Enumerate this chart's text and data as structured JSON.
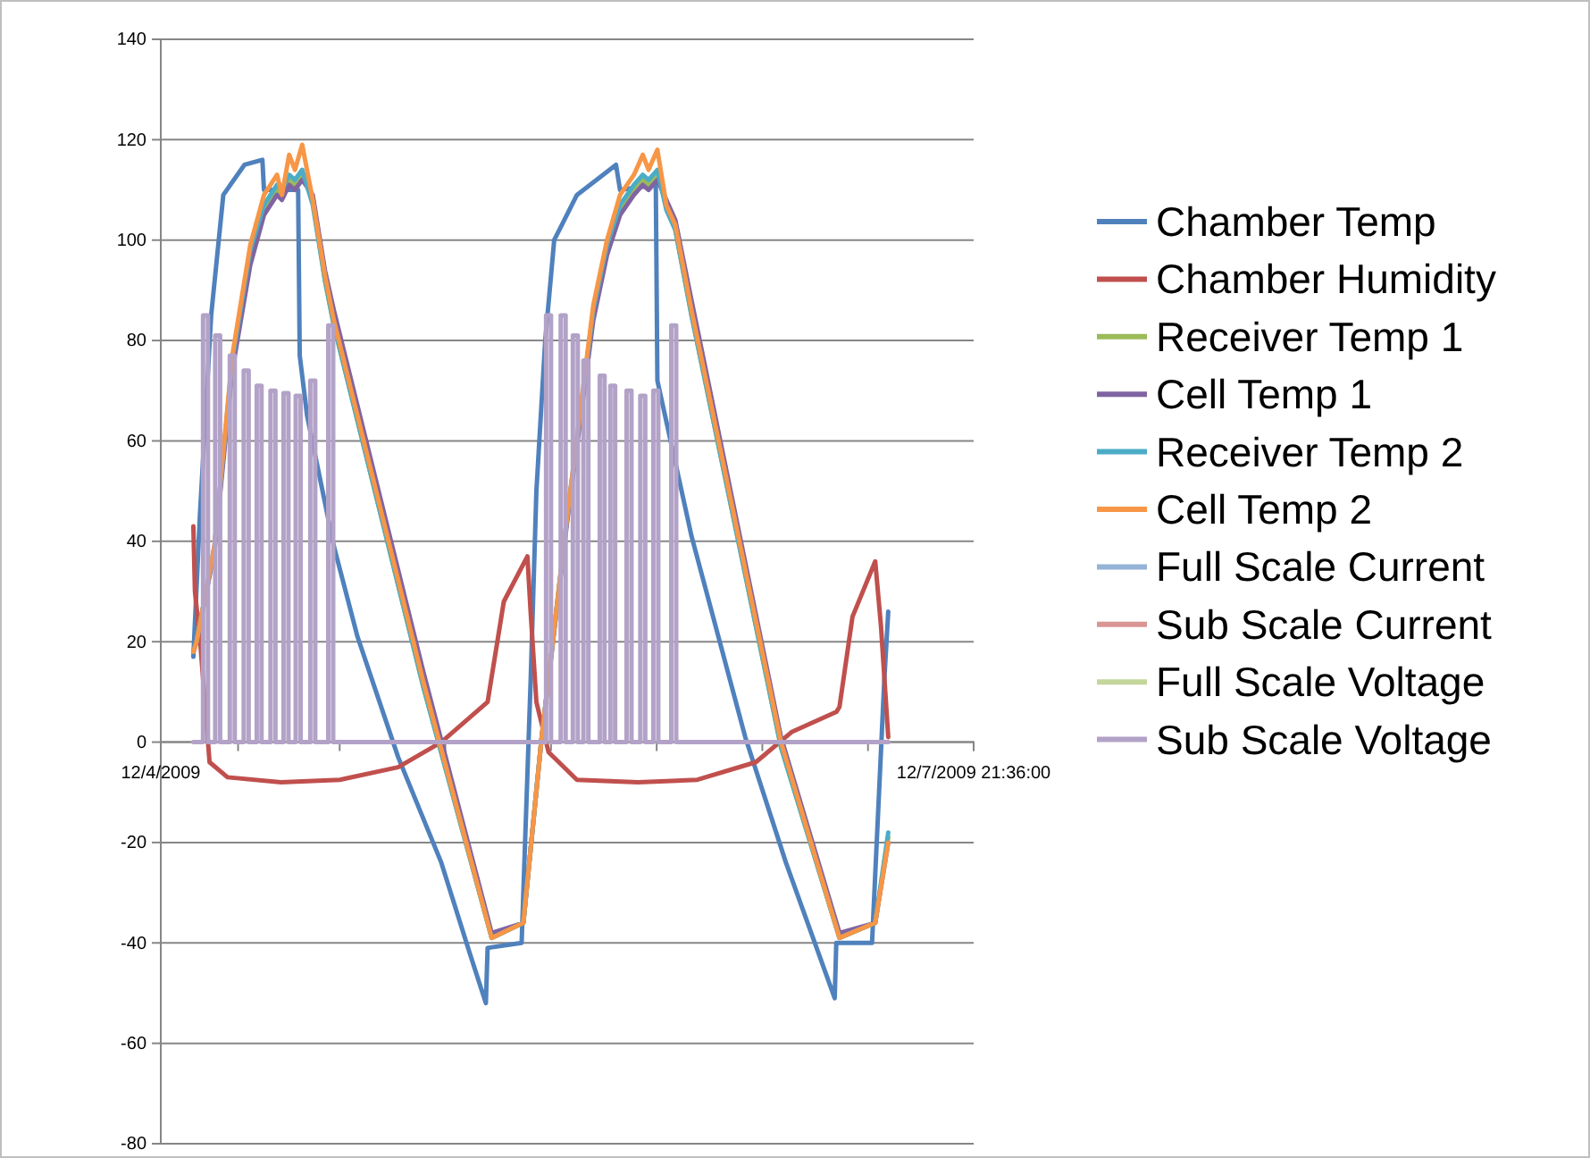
{
  "chart_data": {
    "type": "line",
    "xlim": [
      "2009-12-04T00:00",
      "2009-12-07T21:36"
    ],
    "xticks": [
      {
        "value": "2009-12-04T00:00",
        "label": "12/4/2009"
      },
      {
        "value": "2009-12-04T08:54",
        "label": null
      },
      {
        "value": "2009-12-04T20:36",
        "label": null
      },
      {
        "value": "2009-12-05T08:46",
        "label": null
      },
      {
        "value": "2009-12-05T20:56",
        "label": null
      },
      {
        "value": "2009-12-06T09:06",
        "label": null
      },
      {
        "value": "2009-12-06T21:16",
        "label": null
      },
      {
        "value": "2009-12-07T09:26",
        "label": null
      },
      {
        "value": "2009-12-07T21:36",
        "label": "12/7/2009 21:36:00"
      }
    ],
    "ylim": [
      -80,
      140
    ],
    "yticks": [
      -80,
      -60,
      -40,
      -20,
      0,
      20,
      40,
      60,
      80,
      100,
      120,
      140
    ],
    "grid": "y",
    "legend": "right",
    "line_style": "solid",
    "series": [
      {
        "name": "Chamber Temp",
        "color": "#4f81bd",
        "x": [
          "2009-12-04T03:45",
          "2009-12-04T04:30",
          "2009-12-04T05:48",
          "2009-12-04T07:12",
          "2009-12-04T09:38",
          "2009-12-04T11:42",
          "2009-12-04T11:53",
          "2009-12-04T15:49",
          "2009-12-04T16:00",
          "2009-12-04T16:51",
          "2009-12-04T19:56",
          "2009-12-04T22:39",
          "2009-12-05T03:20",
          "2009-12-05T08:18",
          "2009-12-05T11:34",
          "2009-12-05T13:26",
          "2009-12-05T13:38",
          "2009-12-05T17:33",
          "2009-12-05T18:35",
          "2009-12-05T19:15",
          "2009-12-05T20:16",
          "2009-12-05T21:18",
          "2009-12-05T23:55",
          "2009-12-06T04:25",
          "2009-12-06T04:53",
          "2009-12-06T09:00",
          "2009-12-06T09:11",
          "2009-12-06T13:07",
          "2009-12-06T19:18",
          "2009-12-06T23:59",
          "2009-12-07T05:36",
          "2009-12-07T05:47",
          "2009-12-07T09:54",
          "2009-12-07T11:18",
          "2009-12-07T11:46"
        ],
        "values": [
          17,
          45,
          85,
          109,
          115,
          116,
          110,
          110,
          77,
          65,
          39,
          21,
          -3,
          -24,
          -42,
          -52,
          -41,
          -40,
          12,
          50,
          80,
          100,
          109,
          115,
          110,
          111,
          72,
          41,
          1,
          -24,
          -51,
          -40,
          -40,
          12,
          26
        ]
      },
      {
        "name": "Chamber Humidity",
        "color": "#c0504d",
        "x": [
          "2009-12-04T03:45",
          "2009-12-04T03:56",
          "2009-12-04T04:35",
          "2009-12-04T05:37",
          "2009-12-04T07:41",
          "2009-12-04T13:51",
          "2009-12-04T20:36",
          "2009-12-05T03:20",
          "2009-12-05T08:18",
          "2009-12-05T13:38",
          "2009-12-05T15:30",
          "2009-12-05T18:13",
          "2009-12-05T18:35",
          "2009-12-05T19:15",
          "2009-12-05T20:39",
          "2009-12-05T23:55",
          "2009-12-06T06:57",
          "2009-12-06T13:47",
          "2009-12-06T20:31",
          "2009-12-07T00:38",
          "2009-12-07T05:47",
          "2009-12-07T06:09",
          "2009-12-07T07:39",
          "2009-12-07T10:16",
          "2009-12-07T10:56",
          "2009-12-07T11:46"
        ],
        "values": [
          43,
          30,
          19,
          -4,
          -7,
          -8,
          -7.5,
          -5,
          0,
          8,
          28,
          37,
          26,
          8,
          -2,
          -7.5,
          -8,
          -7.5,
          -4,
          2,
          6,
          7,
          25,
          36,
          23,
          1
        ]
      },
      {
        "name": "Receiver Temp 1",
        "color": "#9bbb59",
        "x": [
          "2009-12-04T03:45",
          "2009-12-04T04:07",
          "2009-12-04T06:11",
          "2009-12-04T08:14",
          "2009-12-04T10:18",
          "2009-12-04T11:53",
          "2009-12-04T13:23",
          "2009-12-04T13:57",
          "2009-12-04T14:47",
          "2009-12-04T15:27",
          "2009-12-04T16:17",
          "2009-12-04T17:30",
          "2009-12-04T18:54",
          "2009-12-04T19:56",
          "2009-12-05T06:14",
          "2009-12-05T14:06",
          "2009-12-05T17:45",
          "2009-12-05T19:48",
          "2009-12-05T22:48",
          "2009-12-06T01:48",
          "2009-12-06T03:23",
          "2009-12-06T04:53",
          "2009-12-06T06:29",
          "2009-12-06T07:30",
          "2009-12-06T08:10",
          "2009-12-06T09:11",
          "2009-12-06T10:13",
          "2009-12-06T11:15",
          "2009-12-06T13:07",
          "2009-12-06T23:25",
          "2009-12-07T06:09",
          "2009-12-07T10:16",
          "2009-12-07T11:46"
        ],
        "values": [
          18,
          20,
          39,
          75,
          97,
          106,
          110,
          109,
          112,
          111,
          113,
          108,
          92,
          83,
          11,
          -39,
          -36,
          0,
          45,
          85,
          98,
          106,
          110,
          112,
          111,
          113,
          107,
          102,
          85,
          -1,
          -39,
          -36,
          -19
        ]
      },
      {
        "name": "Cell Temp 1",
        "color": "#8064a2",
        "x": [
          "2009-12-04T03:45",
          "2009-12-04T04:07",
          "2009-12-04T06:11",
          "2009-12-04T08:14",
          "2009-12-04T10:18",
          "2009-12-04T11:53",
          "2009-12-04T13:23",
          "2009-12-04T13:57",
          "2009-12-04T14:47",
          "2009-12-04T15:27",
          "2009-12-04T16:17",
          "2009-12-04T17:30",
          "2009-12-04T18:54",
          "2009-12-04T19:56",
          "2009-12-05T06:14",
          "2009-12-05T14:06",
          "2009-12-05T17:45",
          "2009-12-05T19:48",
          "2009-12-05T22:48",
          "2009-12-06T01:48",
          "2009-12-06T03:23",
          "2009-12-06T04:53",
          "2009-12-06T06:29",
          "2009-12-06T07:30",
          "2009-12-06T08:10",
          "2009-12-06T09:11",
          "2009-12-06T10:13",
          "2009-12-06T11:15",
          "2009-12-06T13:07",
          "2009-12-06T23:25",
          "2009-12-07T06:09",
          "2009-12-07T10:16",
          "2009-12-07T11:46"
        ],
        "values": [
          18,
          20,
          38,
          74,
          95,
          105,
          109,
          108,
          111,
          110,
          112,
          109,
          94,
          86,
          14,
          -38,
          -36,
          0,
          44,
          84,
          97,
          105,
          109,
          111,
          110,
          112,
          108,
          104,
          88,
          1,
          -38,
          -36,
          -20
        ]
      },
      {
        "name": "Receiver Temp 2",
        "color": "#4bacc6",
        "x": [
          "2009-12-04T03:45",
          "2009-12-04T04:07",
          "2009-12-04T06:11",
          "2009-12-04T08:14",
          "2009-12-04T10:18",
          "2009-12-04T11:53",
          "2009-12-04T13:23",
          "2009-12-04T13:57",
          "2009-12-04T14:47",
          "2009-12-04T15:27",
          "2009-12-04T16:17",
          "2009-12-04T17:30",
          "2009-12-04T18:54",
          "2009-12-04T19:56",
          "2009-12-05T06:14",
          "2009-12-05T14:06",
          "2009-12-05T17:45",
          "2009-12-05T19:48",
          "2009-12-05T22:48",
          "2009-12-06T01:48",
          "2009-12-06T03:23",
          "2009-12-06T04:53",
          "2009-12-06T06:29",
          "2009-12-06T07:30",
          "2009-12-06T08:10",
          "2009-12-06T09:11",
          "2009-12-06T10:13",
          "2009-12-06T11:15",
          "2009-12-06T13:07",
          "2009-12-06T23:25",
          "2009-12-07T06:09",
          "2009-12-07T10:16",
          "2009-12-07T11:46"
        ],
        "values": [
          18,
          20,
          39,
          76,
          98,
          107,
          111,
          110,
          113,
          112,
          114,
          107,
          92,
          83,
          11,
          -39,
          -36,
          0,
          45,
          86,
          99,
          107,
          111,
          113,
          112,
          114,
          106,
          102,
          85,
          -1,
          -39,
          -36,
          -18
        ]
      },
      {
        "name": "Cell Temp 2",
        "color": "#f79646",
        "x": [
          "2009-12-04T03:45",
          "2009-12-04T04:07",
          "2009-12-04T06:11",
          "2009-12-04T08:14",
          "2009-12-04T10:18",
          "2009-12-04T11:53",
          "2009-12-04T13:23",
          "2009-12-04T13:57",
          "2009-12-04T14:47",
          "2009-12-04T15:27",
          "2009-12-04T16:17",
          "2009-12-04T17:30",
          "2009-12-04T18:54",
          "2009-12-04T19:56",
          "2009-12-05T06:14",
          "2009-12-05T14:06",
          "2009-12-05T17:45",
          "2009-12-05T19:48",
          "2009-12-05T22:48",
          "2009-12-06T01:48",
          "2009-12-06T03:23",
          "2009-12-06T04:53",
          "2009-12-06T06:29",
          "2009-12-06T07:30",
          "2009-12-06T08:10",
          "2009-12-06T09:11",
          "2009-12-06T10:13",
          "2009-12-06T11:15",
          "2009-12-06T13:07",
          "2009-12-06T23:25",
          "2009-12-07T06:09",
          "2009-12-07T10:16",
          "2009-12-07T11:46"
        ],
        "values": [
          18,
          20,
          39,
          77,
          99,
          109,
          113,
          109,
          117,
          114,
          119,
          108,
          93,
          84,
          12,
          -39,
          -36,
          0,
          45,
          87,
          100,
          109,
          113,
          117,
          114,
          118,
          107,
          103,
          86,
          0,
          -39,
          -36,
          -20
        ]
      },
      {
        "name": "Full Scale Current",
        "color": "#95b3d7"
      },
      {
        "name": "Sub Scale Current",
        "color": "#d99694"
      },
      {
        "name": "Full Scale Voltage",
        "color": "#c3d69b"
      },
      {
        "name": "Sub Scale Voltage",
        "color": "#b3a2c7",
        "x": [
          "2009-12-04T03:45",
          "2009-12-04T04:52",
          "2009-12-04T04:52",
          "2009-12-04T05:26",
          "2009-12-04T05:26",
          "2009-12-04T06:16",
          "2009-12-04T06:16",
          "2009-12-04T06:50",
          "2009-12-04T06:50",
          "2009-12-04T07:57",
          "2009-12-04T07:57",
          "2009-12-04T08:31",
          "2009-12-04T08:31",
          "2009-12-04T09:33",
          "2009-12-04T09:33",
          "2009-12-04T10:07",
          "2009-12-04T10:07",
          "2009-12-04T11:03",
          "2009-12-04T11:03",
          "2009-12-04T11:36",
          "2009-12-04T11:36",
          "2009-12-04T12:38",
          "2009-12-04T12:38",
          "2009-12-04T13:12",
          "2009-12-04T13:12",
          "2009-12-04T14:08",
          "2009-12-04T14:08",
          "2009-12-04T14:42",
          "2009-12-04T14:42",
          "2009-12-04T15:32",
          "2009-12-04T15:32",
          "2009-12-04T16:06",
          "2009-12-04T16:06",
          "2009-12-04T17:13",
          "2009-12-04T17:13",
          "2009-12-04T17:47",
          "2009-12-04T17:47",
          "2009-12-04T19:17",
          "2009-12-04T19:17",
          "2009-12-04T19:51",
          "2009-12-04T19:51",
          "2009-12-05T20:22",
          "2009-12-05T20:22",
          "2009-12-05T20:56",
          "2009-12-05T20:56",
          "2009-12-05T22:03",
          "2009-12-05T22:03",
          "2009-12-05T22:37",
          "2009-12-05T22:37",
          "2009-12-05T23:27",
          "2009-12-05T23:27",
          "2009-12-06T00:01",
          "2009-12-06T00:01",
          "2009-12-06T00:40",
          "2009-12-06T00:40",
          "2009-12-06T01:14",
          "2009-12-06T01:14",
          "2009-12-06T02:33",
          "2009-12-06T02:33",
          "2009-12-06T03:06",
          "2009-12-06T03:06",
          "2009-12-06T03:46",
          "2009-12-06T03:46",
          "2009-12-06T04:19",
          "2009-12-06T04:19",
          "2009-12-06T05:38",
          "2009-12-06T05:38",
          "2009-12-06T06:12",
          "2009-12-06T06:12",
          "2009-12-06T07:13",
          "2009-12-06T07:13",
          "2009-12-06T07:47",
          "2009-12-06T07:47",
          "2009-12-06T08:43",
          "2009-12-06T08:43",
          "2009-12-06T09:17",
          "2009-12-06T09:17",
          "2009-12-06T10:47",
          "2009-12-06T10:47",
          "2009-12-06T11:21",
          "2009-12-06T11:21",
          "2009-12-07T11:46"
        ],
        "values": [
          0,
          0,
          85,
          85,
          0,
          0,
          81,
          81,
          0,
          0,
          77,
          77,
          0,
          0,
          74,
          74,
          0,
          0,
          71,
          71,
          0,
          0,
          70,
          70,
          0,
          0,
          69.5,
          69.5,
          0,
          0,
          69,
          69,
          0,
          0,
          72,
          72,
          0,
          0,
          83,
          83,
          0,
          0,
          85,
          85,
          0,
          0,
          85,
          85,
          0,
          0,
          81,
          81,
          0,
          0,
          76,
          76,
          0,
          0,
          73,
          73,
          0,
          0,
          71,
          71,
          0,
          0,
          70,
          70,
          0,
          0,
          69,
          69,
          0,
          0,
          70,
          70,
          0,
          0,
          83,
          83,
          0,
          0
        ]
      }
    ]
  }
}
